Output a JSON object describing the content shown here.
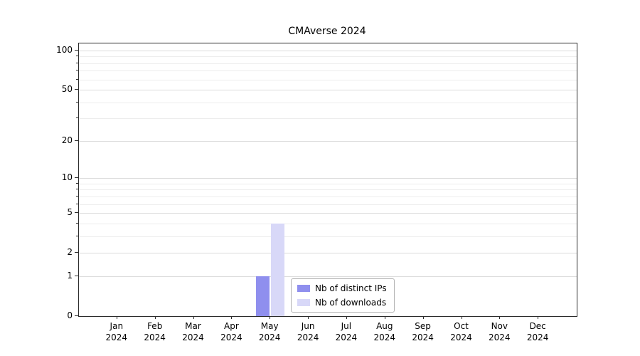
{
  "chart_data": {
    "type": "bar",
    "title": "CMAverse 2024",
    "categories": [
      "Jan 2024",
      "Feb 2024",
      "Mar 2024",
      "Apr 2024",
      "May 2024",
      "Jun 2024",
      "Jul 2024",
      "Aug 2024",
      "Sep 2024",
      "Oct 2024",
      "Nov 2024",
      "Dec 2024"
    ],
    "series": [
      {
        "name": "Nb of distinct IPs",
        "color": "#8f8fee",
        "values": [
          0,
          0,
          0,
          0,
          1,
          0,
          0,
          0,
          0,
          0,
          0,
          0
        ]
      },
      {
        "name": "Nb of downloads",
        "color": "#d8d8f8",
        "values": [
          0,
          0,
          0,
          0,
          4,
          0,
          0,
          0,
          0,
          0,
          0,
          0
        ]
      }
    ],
    "y_scale": "log1p",
    "y_ticks": [
      0,
      1,
      2,
      5,
      10,
      20,
      50,
      100
    ],
    "minor_gridlines": [
      1,
      2,
      3,
      4,
      5,
      6,
      7,
      8,
      9,
      10,
      20,
      30,
      40,
      50,
      60,
      70,
      80,
      90,
      100
    ],
    "ylim": [
      0,
      113
    ],
    "xlabel": "",
    "ylabel": "",
    "grid": true,
    "legend_position": "bottom-center"
  }
}
